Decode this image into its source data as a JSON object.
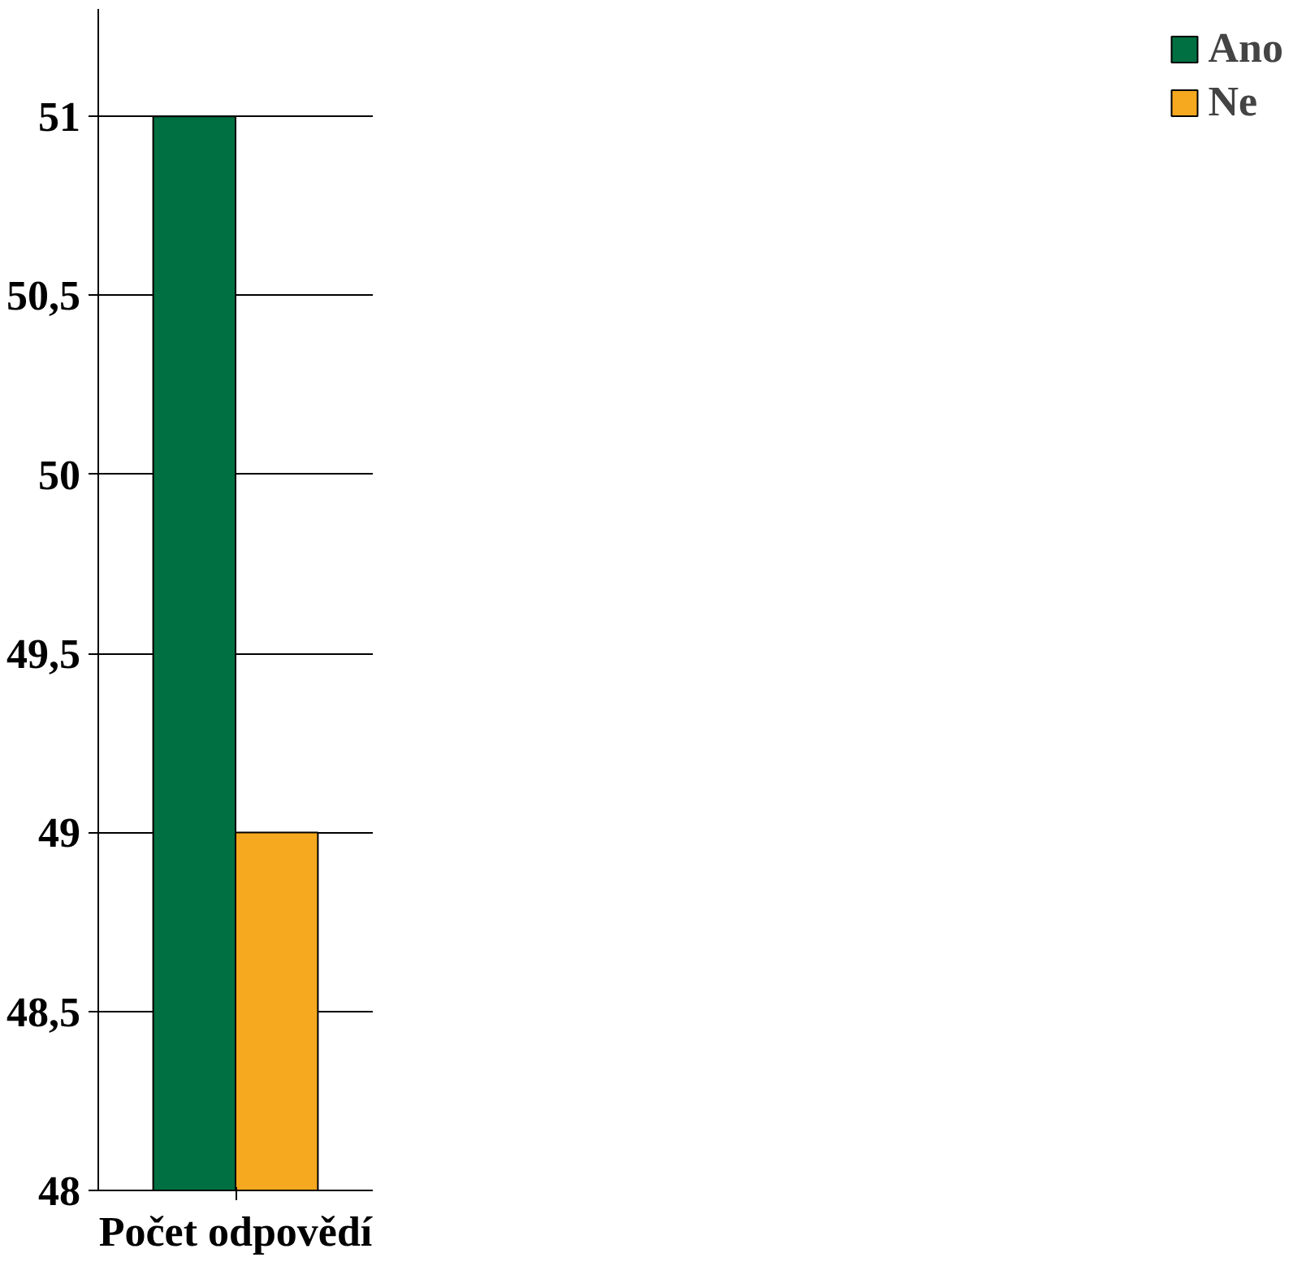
{
  "chart_data": {
    "type": "bar",
    "categories": [
      "Počet odpovědí"
    ],
    "series": [
      {
        "name": "Ano",
        "color": "#006f41",
        "values": [
          51
        ]
      },
      {
        "name": "Ne",
        "color": "#f6a81f",
        "values": [
          49
        ]
      }
    ],
    "ylim": [
      48,
      51.3
    ],
    "yticks": [
      48,
      {
        "value": 48.5,
        "label": "48,5"
      },
      49,
      {
        "value": 49.5,
        "label": "49,5"
      },
      50,
      {
        "value": 50.5,
        "label": "50,5"
      },
      51
    ],
    "grid": "y",
    "legend": "right"
  }
}
